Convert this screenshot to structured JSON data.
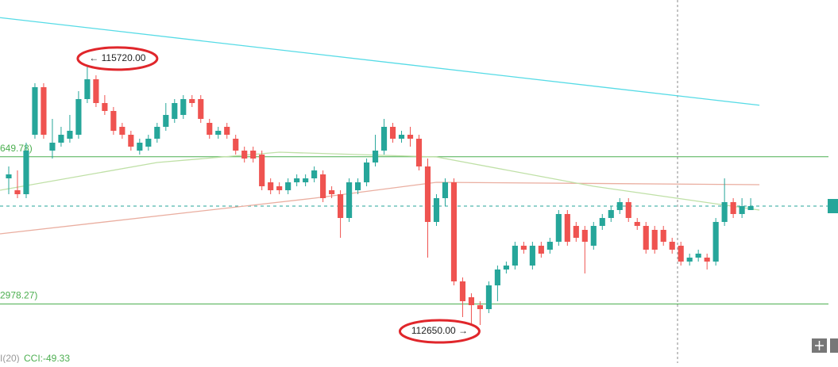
{
  "chart_data": {
    "type": "candlestick",
    "xlim": [
      -1,
      95
    ],
    "ylim": [
      112308,
      116430
    ],
    "colors": {
      "up": "#26a69a",
      "down": "#ef5350"
    },
    "open": [
      114405,
      114270,
      114225,
      114900,
      115440,
      114720,
      114810,
      114855,
      114900,
      115305,
      115530,
      115260,
      115170,
      114990,
      114900,
      114720,
      114765,
      114855,
      114990,
      115080,
      115125,
      115305,
      115305,
      115035,
      114900,
      114990,
      114855,
      114720,
      114720,
      114675,
      114360,
      114315,
      114270,
      114360,
      114360,
      114405,
      114450,
      114270,
      114225,
      113955,
      114270,
      114360,
      114585,
      114720,
      114990,
      114855,
      114900,
      114855,
      114540,
      113910,
      114180,
      114360,
      113235,
      113055,
      112965,
      112920,
      113190,
      113370,
      113415,
      113640,
      113415,
      113640,
      113595,
      113685,
      114000,
      113865,
      113820,
      113640,
      113865,
      113955,
      114045,
      114135,
      113910,
      113865,
      113820,
      113820,
      113685,
      113640,
      113460,
      113505,
      113505,
      113460,
      113910,
      114135,
      114000,
      114045
    ],
    "high": [
      114540,
      114495,
      114810,
      115485,
      115485,
      115080,
      114990,
      115125,
      115395,
      115720,
      115575,
      115350,
      115215,
      115035,
      114945,
      114855,
      114900,
      115035,
      115260,
      115305,
      115350,
      115350,
      115350,
      115080,
      114990,
      115035,
      114900,
      114765,
      114765,
      114720,
      114405,
      114360,
      114405,
      114450,
      114450,
      114540,
      114495,
      114315,
      114270,
      114405,
      114405,
      114630,
      114900,
      115080,
      115035,
      114945,
      114990,
      114900,
      114630,
      114225,
      114405,
      114405,
      113280,
      113100,
      113010,
      113235,
      113415,
      113460,
      113685,
      113685,
      113685,
      113685,
      113730,
      114045,
      114045,
      113910,
      113865,
      113910,
      114000,
      114090,
      114180,
      114180,
      113955,
      113910,
      113865,
      113865,
      113730,
      113685,
      113550,
      113595,
      113550,
      113955,
      114405,
      114180,
      114180,
      114180
    ],
    "low": [
      114225,
      114180,
      114180,
      114855,
      114855,
      114630,
      114765,
      114810,
      114855,
      115260,
      115215,
      115125,
      114900,
      114855,
      114720,
      114675,
      114720,
      114810,
      114945,
      115035,
      115080,
      115215,
      115035,
      114855,
      114855,
      114855,
      114675,
      114585,
      114585,
      114270,
      114225,
      114225,
      114225,
      114315,
      114315,
      114360,
      114135,
      114180,
      113730,
      113910,
      114225,
      114315,
      114540,
      114675,
      114810,
      114810,
      114765,
      114495,
      113505,
      113865,
      114090,
      113190,
      112830,
      112650,
      112740,
      112875,
      113010,
      113325,
      113370,
      113550,
      113370,
      113505,
      113550,
      113640,
      113640,
      113685,
      113325,
      113595,
      113820,
      113910,
      114000,
      113910,
      113820,
      113550,
      113550,
      113640,
      113550,
      113415,
      113415,
      113460,
      113370,
      113415,
      113865,
      113955,
      113955,
      114045
    ],
    "close": [
      114450,
      114225,
      114720,
      115440,
      114900,
      114810,
      114900,
      114945,
      115305,
      115530,
      115260,
      115170,
      114945,
      114900,
      114765,
      114810,
      114855,
      114990,
      115125,
      115260,
      115305,
      115260,
      115080,
      114900,
      114945,
      114900,
      114720,
      114630,
      114630,
      114315,
      114270,
      114270,
      114360,
      114405,
      114405,
      114495,
      114180,
      114225,
      113955,
      114360,
      114360,
      114585,
      114720,
      114990,
      114855,
      114900,
      114855,
      114540,
      113910,
      114180,
      114360,
      113235,
      113010,
      112965,
      112920,
      113190,
      113370,
      113415,
      113640,
      113595,
      113640,
      113550,
      113685,
      114000,
      113685,
      113730,
      113685,
      113865,
      113955,
      114045,
      114135,
      113955,
      113865,
      113595,
      113595,
      113685,
      113595,
      113460,
      113505,
      113550,
      113460,
      113910,
      114135,
      114000,
      114090,
      114090
    ],
    "lines": [
      {
        "color": "#56dbe6",
        "x": [
          -1,
          86
        ],
        "values": [
          116230,
          115235
        ]
      },
      {
        "color": "#eaaea0",
        "x": [
          -1,
          35,
          49,
          86
        ],
        "values": [
          113775,
          114180,
          114360,
          114333
        ]
      },
      {
        "color": "#bfe0a6",
        "x": [
          -1,
          17,
          31,
          49,
          67,
          86
        ],
        "values": [
          114270,
          114585,
          114702,
          114648,
          114315,
          114045
        ]
      }
    ],
    "levels": [
      {
        "value": 114649.78,
        "label": "649.78)"
      },
      {
        "value": 112978.27,
        "label": "2978.27)"
      }
    ],
    "current_price": 114090,
    "annotations": [
      {
        "x": 9,
        "value": 115720,
        "label": "← 115720.00"
      },
      {
        "x": 53,
        "value": 112650,
        "label": "112650.00 →"
      }
    ]
  },
  "indicator": {
    "name": "I(20)",
    "value_label": "CCI:-49.33"
  }
}
